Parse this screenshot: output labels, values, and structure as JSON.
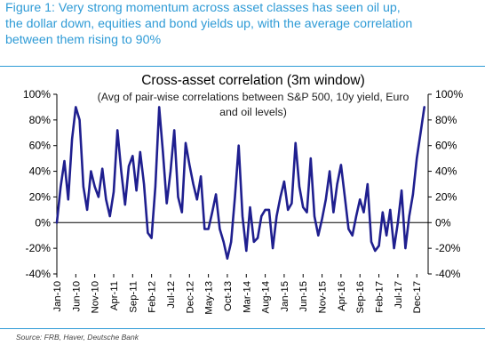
{
  "figure": {
    "caption": "Figure 1: Very strong momentum across asset classes has seen oil up,\nthe dollar down, equities and bond yields up, with the average correlation\nbetween them rising to 90%",
    "source": "Source: FRB, Haver, Deutsche Bank"
  },
  "chart_data": {
    "type": "line",
    "title": "Cross-asset correlation (3m window)",
    "subtitle": "(Avg of pair-wise correlations between S&P 500, 10y yield, Euro and oil levels)",
    "subtitle_lines": [
      "(Avg of pair-wise correlations between S&P 500, 10y yield, Euro",
      "and oil levels)"
    ],
    "ylim": [
      -40,
      100
    ],
    "y_ticks": [
      -40,
      -20,
      0,
      20,
      40,
      60,
      80,
      100
    ],
    "y_tick_labels_left": [
      "-40%",
      "-20%",
      "0%",
      "20%",
      "40%",
      "60%",
      "80%",
      "100%"
    ],
    "y_tick_labels_right": [
      "-40%",
      "-20%",
      "0%",
      "20%",
      "40%",
      "60%",
      "80%",
      "100%"
    ],
    "x_range": [
      "2010-01",
      "2018-03"
    ],
    "x_tick_labels": [
      "Jan-10",
      "Jun-10",
      "Nov-10",
      "Apr-11",
      "Sep-11",
      "Feb-12",
      "Jul-12",
      "Dec-12",
      "May-13",
      "Oct-13",
      "Mar-14",
      "Aug-14",
      "Jan-15",
      "Jun-15",
      "Nov-15",
      "Apr-16",
      "Sep-16",
      "Feb-17",
      "Jul-17",
      "Dec-17"
    ],
    "grid": false,
    "line_color": "#1f1f8f",
    "series": [
      {
        "x": [
          "2010-01",
          "2010-02",
          "2010-03",
          "2010-04",
          "2010-05",
          "2010-06",
          "2010-07",
          "2010-08",
          "2010-09",
          "2010-10",
          "2010-11",
          "2010-12",
          "2011-01",
          "2011-02",
          "2011-03",
          "2011-04",
          "2011-05",
          "2011-06",
          "2011-07",
          "2011-08",
          "2011-09",
          "2011-10",
          "2011-11",
          "2011-12",
          "2012-01",
          "2012-02",
          "2012-03",
          "2012-04",
          "2012-05",
          "2012-06",
          "2012-07",
          "2012-08",
          "2012-09",
          "2012-10",
          "2012-11",
          "2012-12",
          "2013-01",
          "2013-02",
          "2013-03",
          "2013-04",
          "2013-05",
          "2013-06",
          "2013-07",
          "2013-08",
          "2013-09",
          "2013-10",
          "2013-11",
          "2013-12",
          "2014-01",
          "2014-02",
          "2014-03",
          "2014-04",
          "2014-05",
          "2014-06",
          "2014-07",
          "2014-08",
          "2014-09",
          "2014-10",
          "2014-11",
          "2014-12",
          "2015-01",
          "2015-02",
          "2015-03",
          "2015-04",
          "2015-05",
          "2015-06",
          "2015-07",
          "2015-08",
          "2015-09",
          "2015-10",
          "2015-11",
          "2015-12",
          "2016-01",
          "2016-02",
          "2016-03",
          "2016-04",
          "2016-05",
          "2016-06",
          "2016-07",
          "2016-08",
          "2016-09",
          "2016-10",
          "2016-11",
          "2016-12",
          "2017-01",
          "2017-02",
          "2017-03",
          "2017-04",
          "2017-05",
          "2017-06",
          "2017-07",
          "2017-08",
          "2017-09",
          "2017-10",
          "2017-11",
          "2017-12",
          "2018-01",
          "2018-02"
        ],
        "values": [
          0,
          28,
          48,
          18,
          65,
          90,
          80,
          28,
          10,
          40,
          28,
          20,
          42,
          18,
          5,
          24,
          72,
          40,
          14,
          44,
          52,
          25,
          55,
          30,
          -8,
          -12,
          28,
          90,
          55,
          15,
          40,
          72,
          20,
          8,
          62,
          45,
          30,
          18,
          36,
          -5,
          -5,
          8,
          22,
          -5,
          -15,
          -28,
          -15,
          20,
          60,
          5,
          -22,
          12,
          -15,
          -12,
          5,
          10,
          10,
          -20,
          5,
          20,
          32,
          10,
          15,
          62,
          28,
          12,
          8,
          50,
          5,
          -10,
          3,
          18,
          40,
          8,
          30,
          45,
          20,
          -5,
          -10,
          5,
          18,
          8,
          30,
          -15,
          -22,
          -18,
          8,
          -10,
          10,
          -20,
          0,
          25,
          -20,
          5,
          22,
          50,
          70,
          90
        ]
      }
    ]
  }
}
